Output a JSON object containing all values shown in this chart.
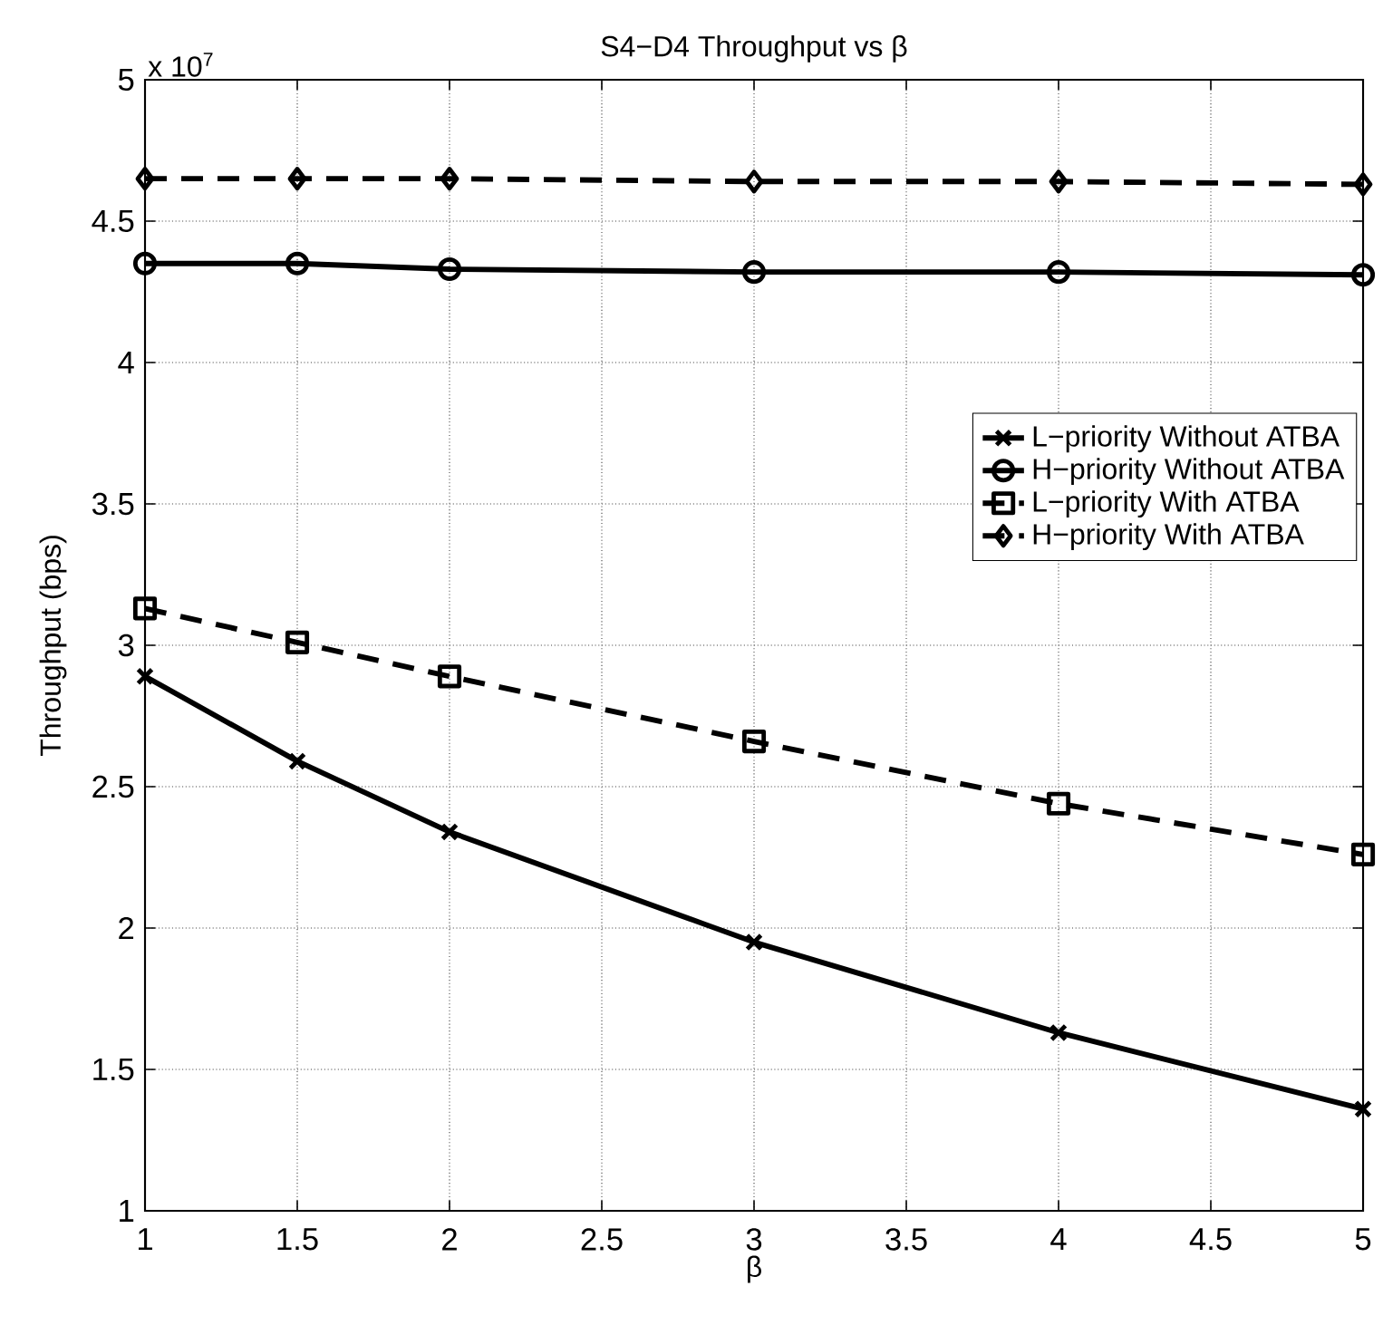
{
  "chart_data": {
    "type": "line",
    "title": "S4−D4 Throughput vs β",
    "xlabel": "β",
    "ylabel": "Throughput (bps)",
    "annotations": [
      "x 10$^{7}$"
    ],
    "x": [
      1,
      1.5,
      2,
      3,
      4,
      5
    ],
    "series": [
      {
        "name": "L−priority Without ATBA",
        "color": "#000000",
        "marker": "cross",
        "line_style": "solid",
        "values": [
          2.89,
          2.59,
          2.34,
          1.95,
          1.63,
          1.36
        ]
      },
      {
        "name": "H−priority Without ATBA",
        "color": "#000000",
        "marker": "circle",
        "line_style": "solid",
        "values": [
          4.35,
          4.35,
          4.33,
          4.32,
          4.32,
          4.31
        ]
      },
      {
        "name": "L−priority With ATBA",
        "color": "#000000",
        "marker": "square",
        "line_style": "dashed",
        "values": [
          3.13,
          3.01,
          2.89,
          2.66,
          2.44,
          2.26
        ]
      },
      {
        "name": "H−priority With ATBA",
        "color": "#000000",
        "marker": "diamond",
        "line_style": "dashed",
        "values": [
          4.65,
          4.65,
          4.65,
          4.64,
          4.64,
          4.63
        ]
      }
    ],
    "xlim": [
      1,
      5
    ],
    "ylim": [
      1,
      5
    ],
    "xticks": [
      1,
      1.5,
      2,
      2.5,
      3,
      3.5,
      4,
      4.5,
      5
    ],
    "yticks": [
      1,
      1.5,
      2,
      2.5,
      3,
      3.5,
      4,
      4.5,
      5
    ],
    "grid": true,
    "legend": "right"
  }
}
